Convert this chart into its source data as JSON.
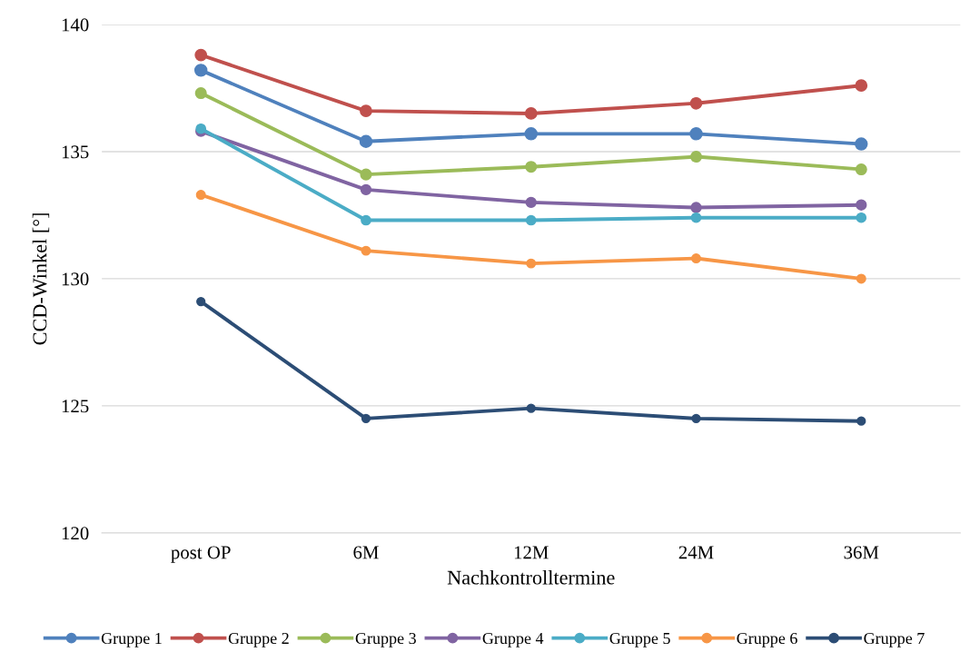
{
  "chart_data": {
    "type": "line",
    "xlabel": "Nachkontrolltermine",
    "ylabel": "CCD-Winkel [°]",
    "categories": [
      "post OP",
      "6M",
      "12M",
      "24M",
      "36M"
    ],
    "series": [
      {
        "name": "Gruppe 1",
        "color": "#4f81bd",
        "values": [
          138.2,
          135.4,
          135.7,
          135.7,
          135.3
        ]
      },
      {
        "name": "Gruppe 2",
        "color": "#c0504d",
        "values": [
          138.8,
          136.6,
          136.5,
          136.9,
          137.6
        ]
      },
      {
        "name": "Gruppe 3",
        "color": "#9bbb59",
        "values": [
          137.3,
          134.1,
          134.4,
          134.8,
          134.3
        ]
      },
      {
        "name": "Gruppe 4",
        "color": "#8064a2",
        "values": [
          135.8,
          133.5,
          133.0,
          132.8,
          132.9
        ]
      },
      {
        "name": "Gruppe 5",
        "color": "#4bacc6",
        "values": [
          135.9,
          132.3,
          132.3,
          132.4,
          132.4
        ]
      },
      {
        "name": "Gruppe 6",
        "color": "#f79646",
        "values": [
          133.3,
          131.1,
          130.6,
          130.8,
          130.0
        ]
      },
      {
        "name": "Gruppe 7",
        "color": "#2c4d75",
        "values": [
          129.1,
          124.5,
          124.9,
          124.5,
          124.4
        ]
      }
    ],
    "ylim": [
      120,
      140
    ],
    "yticks": [
      120,
      125,
      130,
      135,
      140
    ],
    "grid": "y",
    "legend": "bottom",
    "marker": "circle",
    "line_style": "solid"
  }
}
